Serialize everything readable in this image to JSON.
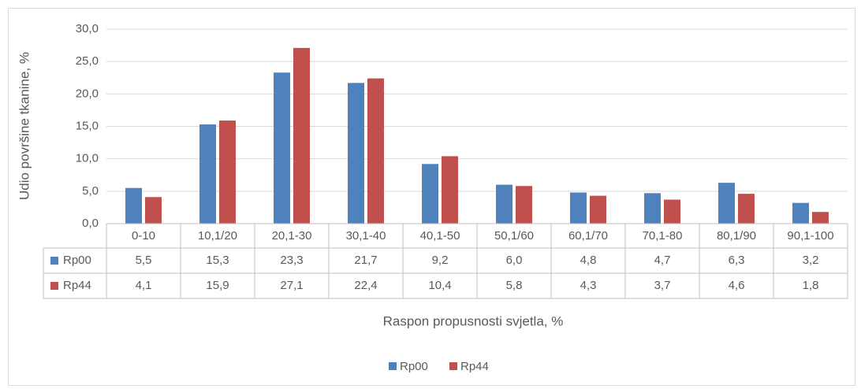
{
  "chart_data": {
    "type": "bar",
    "y_label": "Udio površine tkanine, %",
    "x_label": "Raspon propusnosti svjetla, %",
    "categories": [
      "0-10",
      "10,1/20",
      "20,1-30",
      "30,1-40",
      "40,1-50",
      "50,1/60",
      "60,1/70",
      "70,1-80",
      "80,1/90",
      "90,1-100"
    ],
    "series": [
      {
        "name": "Rp00",
        "color": "#4f81bd",
        "values": [
          5.5,
          15.3,
          23.3,
          21.7,
          9.2,
          6.0,
          4.8,
          4.7,
          6.3,
          3.2
        ],
        "value_labels": [
          "5,5",
          "15,3",
          "23,3",
          "21,7",
          "9,2",
          "6,0",
          "4,8",
          "4,7",
          "6,3",
          "3,2"
        ]
      },
      {
        "name": "Rp44",
        "color": "#c0504d",
        "values": [
          4.1,
          15.9,
          27.1,
          22.4,
          10.4,
          5.8,
          4.3,
          3.7,
          4.6,
          1.8
        ],
        "value_labels": [
          "4,1",
          "15,9",
          "27,1",
          "22,4",
          "10,4",
          "5,8",
          "4,3",
          "3,7",
          "4,6",
          "1,8"
        ]
      }
    ],
    "ylim": [
      0,
      30
    ],
    "yticks": [
      {
        "value": 0,
        "label": "0,0"
      },
      {
        "value": 5,
        "label": "5,0"
      },
      {
        "value": 10,
        "label": "10,0"
      },
      {
        "value": 15,
        "label": "15,0"
      },
      {
        "value": 20,
        "label": "20,0"
      },
      {
        "value": 25,
        "label": "25,0"
      },
      {
        "value": 30,
        "label": "30,0"
      }
    ],
    "grid": true,
    "legend": "bottom"
  }
}
